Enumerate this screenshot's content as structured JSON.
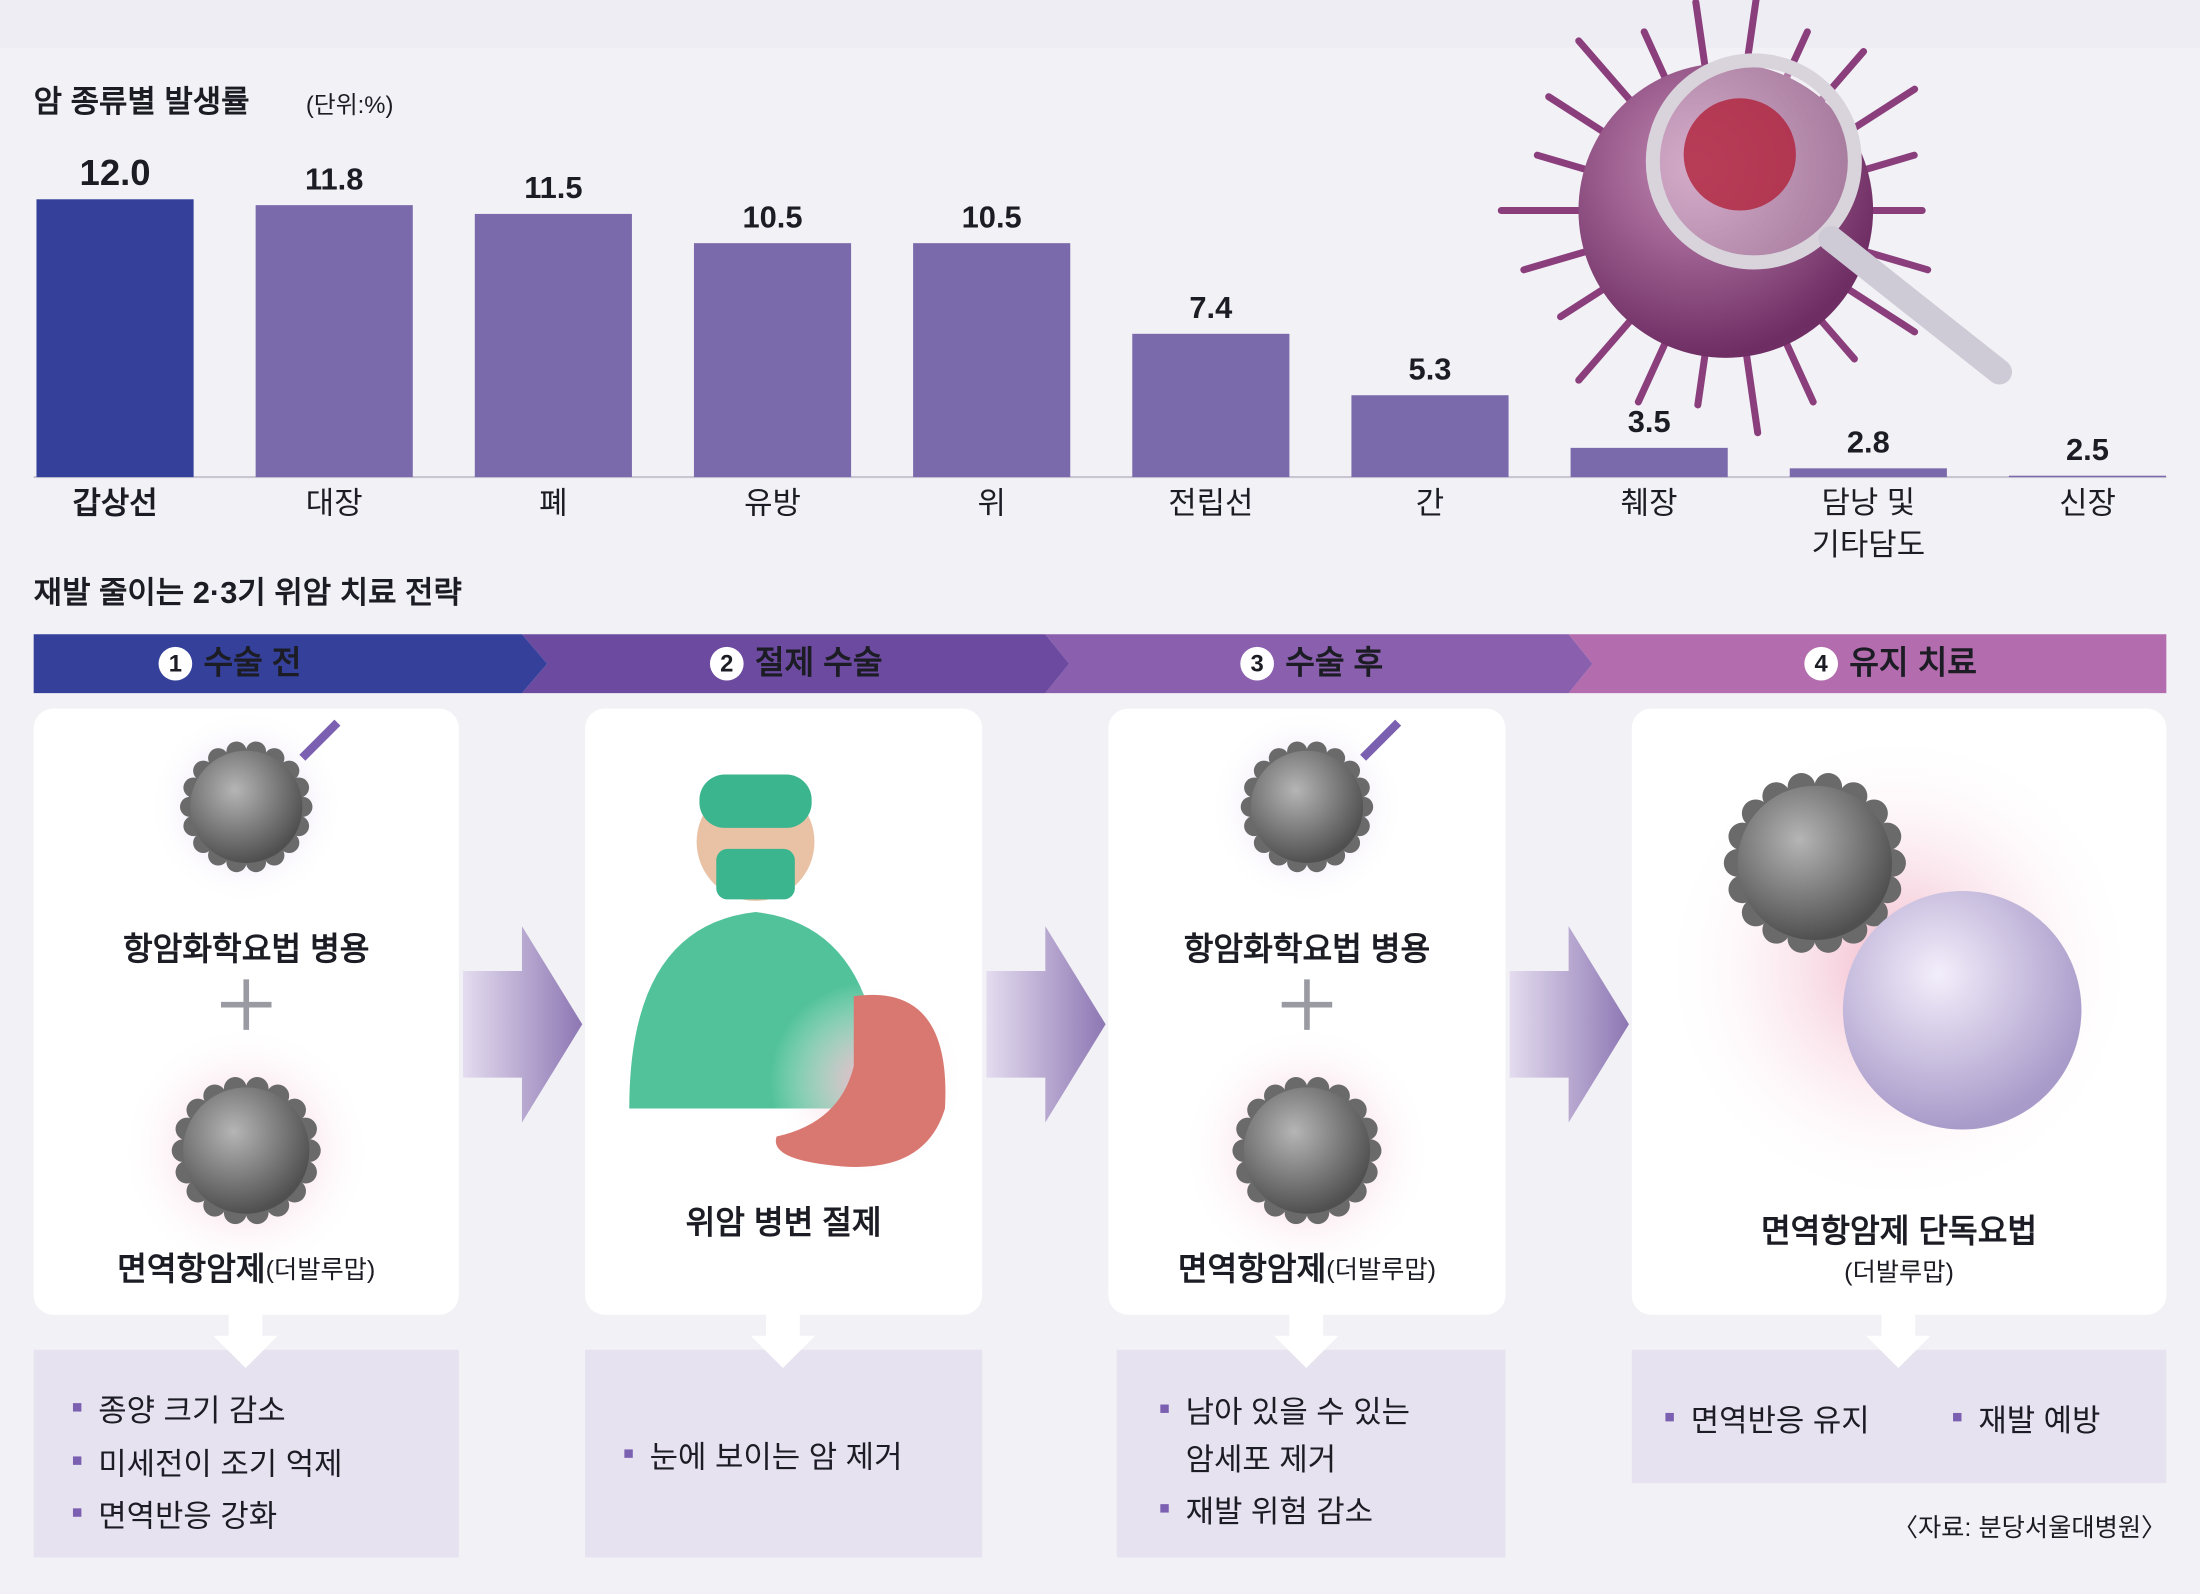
{
  "chart_data": {
    "type": "bar",
    "title": "암 종류별 발생률",
    "unit": "(단위:%)",
    "categories": [
      "갑상선",
      "대장",
      "폐",
      "유방",
      "위",
      "전립선",
      "간",
      "췌장",
      "담낭 및\n기타담도",
      "신장"
    ],
    "values": [
      12.0,
      11.8,
      11.5,
      10.5,
      10.5,
      7.4,
      5.3,
      3.5,
      2.8,
      2.5
    ],
    "value_labels": [
      "12.0",
      "11.8",
      "11.5",
      "10.5",
      "10.5",
      "7.4",
      "5.3",
      "3.5",
      "2.8",
      "2.5"
    ],
    "colors": [
      "#34409a",
      "#7b6aab",
      "#7b6aab",
      "#7b6aab",
      "#7b6aab",
      "#7b6aab",
      "#7b6aab",
      "#7b6aab",
      "#7b6aab",
      "#7b6aab"
    ],
    "ylim": [
      2.5,
      12.0
    ]
  },
  "strategy": {
    "title": "재발 줄이는 2·3기 위암 치료 전략",
    "steps": [
      {
        "number": "1",
        "name": "수술 전",
        "card": {
          "top": "항암화학요법 병용",
          "main": "면역항암제",
          "note": "(더발루맙)"
        },
        "bullets": [
          "종양 크기 감소",
          "미세전이 조기 억제",
          "면역반응 강화"
        ]
      },
      {
        "number": "2",
        "name": "절제 수술",
        "card": {
          "main": "위암 병변 절제"
        },
        "bullets": [
          "눈에 보이는 암 제거"
        ]
      },
      {
        "number": "3",
        "name": "수술 후",
        "card": {
          "top": "항암화학요법 병용",
          "main": "면역항암제",
          "note": "(더발루맙)"
        },
        "bullets": [
          "남아 있을 수 있는\n암세포 제거",
          "재발 위험 감소"
        ]
      },
      {
        "number": "4",
        "name": "유지 치료",
        "card": {
          "main": "면역항암제 단독요법",
          "note": "(더발루맙)"
        },
        "bullets": [
          "면역반응 유지",
          "재발 예방"
        ]
      }
    ]
  },
  "source": "〈자료: 분당서울대병원〉"
}
